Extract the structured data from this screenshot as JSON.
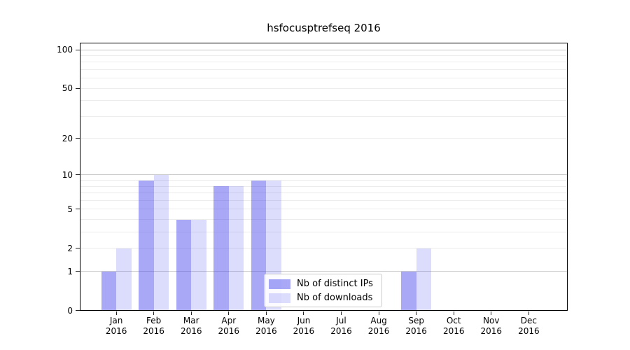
{
  "title": "hsfocusptrefseq 2016",
  "x_axis": {
    "months": [
      "Jan",
      "Feb",
      "Mar",
      "Apr",
      "May",
      "Jun",
      "Jul",
      "Aug",
      "Sep",
      "Oct",
      "Nov",
      "Dec"
    ],
    "year": "2016"
  },
  "y_axis": {
    "labeled_ticks": [
      0,
      1,
      2,
      5,
      10,
      20,
      50,
      100
    ],
    "major_gridlines": [
      1,
      10,
      100
    ],
    "minor_gridlines": [
      2,
      3,
      4,
      5,
      6,
      7,
      8,
      9,
      20,
      30,
      40,
      50,
      60,
      70,
      80,
      90
    ]
  },
  "legend": {
    "items": [
      {
        "label": "Nb of distinct IPs",
        "series": "distinct_ips"
      },
      {
        "label": "Nb of downloads",
        "series": "downloads"
      }
    ]
  },
  "colors": {
    "bar_base_rgb": "62,62,237",
    "bar_dark_alpha": 0.45,
    "bar_light_alpha": 0.18,
    "grid_major": "#c9c9c9",
    "grid_minor": "#ececec",
    "spine": "#000000"
  },
  "chart_data": {
    "type": "bar",
    "title": "hsfocusptrefseq 2016",
    "categories": [
      "Jan 2016",
      "Feb 2016",
      "Mar 2016",
      "Apr 2016",
      "May 2016",
      "Jun 2016",
      "Jul 2016",
      "Aug 2016",
      "Sep 2016",
      "Oct 2016",
      "Nov 2016",
      "Dec 2016"
    ],
    "series": [
      {
        "name": "Nb of distinct IPs",
        "values": [
          1,
          9,
          4,
          8,
          9,
          0,
          0,
          0,
          1,
          0,
          0,
          0
        ]
      },
      {
        "name": "Nb of downloads",
        "values": [
          2,
          10,
          4,
          8,
          9,
          0,
          0,
          0,
          2,
          0,
          0,
          0
        ]
      }
    ],
    "yscale": "log1p",
    "ylim": [
      0,
      113
    ],
    "yticks": [
      0,
      1,
      2,
      5,
      10,
      20,
      50,
      100
    ],
    "grid": "both",
    "legend_position": "lower center"
  }
}
